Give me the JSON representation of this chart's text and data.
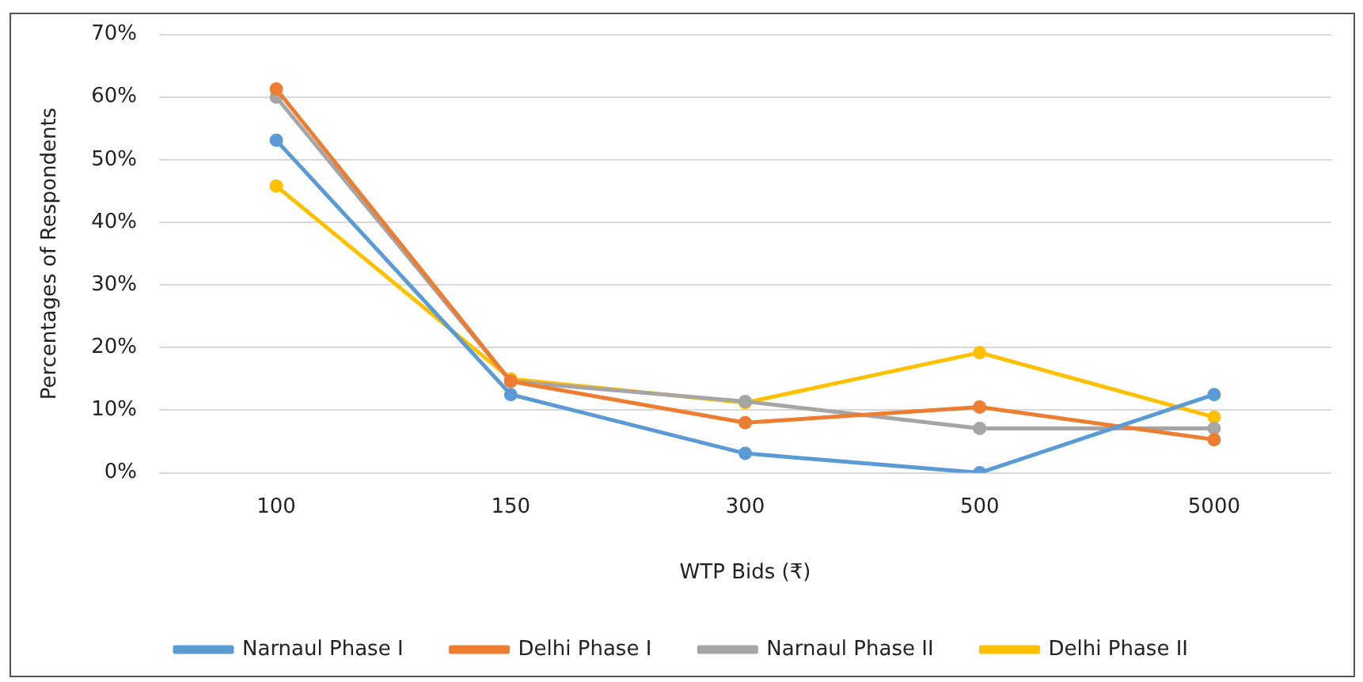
{
  "chart_data": {
    "type": "line",
    "xlabel": "WTP Bids (₹)",
    "ylabel": "Percentages of Respondents",
    "categories": [
      "100",
      "150",
      "300",
      "500",
      "5000"
    ],
    "series": [
      {
        "name": "Narnaul Phase I",
        "color": "#5b9bd5",
        "values": [
          53.1,
          12.5,
          3.1,
          0,
          12.5
        ]
      },
      {
        "name": "Delhi Phase I",
        "color": "#ed7d31",
        "values": [
          61.3,
          14.6,
          8.0,
          10.5,
          5.3
        ]
      },
      {
        "name": "Narnaul Phase II",
        "color": "#a5a5a5",
        "values": [
          60.0,
          14.6,
          11.4,
          7.1,
          7.1
        ]
      },
      {
        "name": "Delhi Phase II",
        "color": "#ffc000",
        "values": [
          45.8,
          15.0,
          11.2,
          19.2,
          8.9
        ]
      }
    ],
    "ylim": [
      0,
      70
    ],
    "yticks": [
      {
        "value": 0,
        "label": "0%"
      },
      {
        "value": 10,
        "label": "10%"
      },
      {
        "value": 20,
        "label": "20%"
      },
      {
        "value": 30,
        "label": "30%"
      },
      {
        "value": 40,
        "label": "40%"
      },
      {
        "value": 50,
        "label": "50%"
      },
      {
        "value": 60,
        "label": "60%"
      },
      {
        "value": 70,
        "label": "70%"
      }
    ],
    "grid": "y",
    "legend": "bottom",
    "marker": "circle",
    "line_style": "solid"
  }
}
